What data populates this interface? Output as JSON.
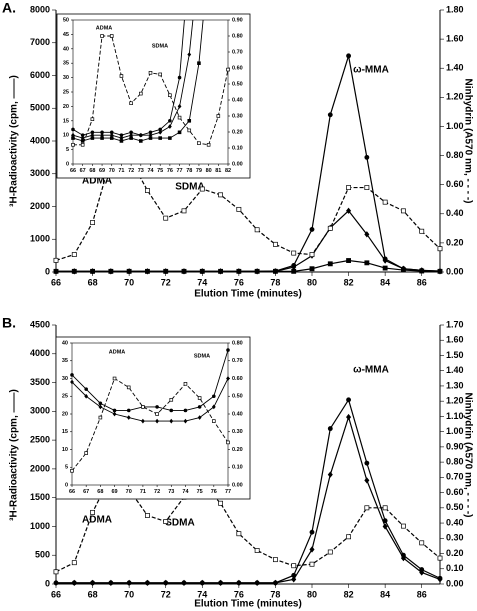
{
  "chart_data": [
    {
      "type": "line",
      "panel_label": "A.",
      "xlabel": "Elution Time (minutes)",
      "ylabel": "³H-Radioactivity (cpm, ——)",
      "y2label": "Ninhydrin (A570 nm, - - - -)",
      "annotations": [
        "ADMA",
        "SDMA",
        "ω-MMA"
      ],
      "x": [
        66,
        67,
        68,
        69,
        70,
        71,
        72,
        73,
        74,
        75,
        76,
        77,
        78,
        79,
        80,
        81,
        82,
        83,
        84,
        85,
        86,
        87
      ],
      "xlim": [
        66,
        87
      ],
      "xticks": [
        66,
        68,
        70,
        72,
        74,
        76,
        78,
        80,
        82,
        84,
        86
      ],
      "ylim": [
        0,
        8000
      ],
      "yticks": [
        0,
        1000,
        2000,
        3000,
        4000,
        5000,
        6000,
        7000,
        8000
      ],
      "y2lim": [
        0,
        1.8
      ],
      "y2ticks": [
        {
          "value": 0,
          "label": "0.00"
        },
        {
          "value": 0.2,
          "label": "0.20"
        },
        {
          "value": 0.4,
          "label": "0.40"
        },
        {
          "value": 0.6,
          "label": "0.60"
        },
        {
          "value": 0.8,
          "label": "0.80"
        },
        {
          "value": 1.0,
          "label": "1.00"
        },
        {
          "value": 1.2,
          "label": "1.20"
        },
        {
          "value": 1.4,
          "label": "1.40"
        },
        {
          "value": 1.6,
          "label": "1.60"
        },
        {
          "value": 1.8,
          "label": "1.80"
        }
      ],
      "series": [
        {
          "marker": "circle",
          "color": "#000000",
          "fill": "#000000",
          "dashed": false,
          "values": [
            20,
            20,
            20,
            20,
            20,
            20,
            20,
            20,
            20,
            20,
            20,
            20,
            30,
            200,
            1300,
            4800,
            6600,
            3500,
            400,
            100,
            50,
            30
          ]
        },
        {
          "marker": "diamond",
          "color": "#000000",
          "fill": "#000000",
          "dashed": false,
          "values": [
            20,
            20,
            20,
            20,
            20,
            20,
            20,
            20,
            20,
            20,
            20,
            20,
            20,
            150,
            500,
            1350,
            1870,
            1150,
            350,
            100,
            50,
            20
          ]
        },
        {
          "marker": "square",
          "color": "#000000",
          "fill": "#000000",
          "dashed": false,
          "values": [
            20,
            20,
            20,
            20,
            20,
            20,
            20,
            20,
            20,
            20,
            20,
            20,
            20,
            20,
            100,
            250,
            350,
            280,
            120,
            60,
            30,
            20
          ]
        },
        {
          "marker": "square",
          "color": "#000000",
          "fill": "#ffffff",
          "dashed": true,
          "axis": "y2",
          "values": [
            0.08,
            0.12,
            0.34,
            0.78,
            0.79,
            0.56,
            0.37,
            0.42,
            0.57,
            0.53,
            0.43,
            0.29,
            0.19,
            0.13,
            0.12,
            0.3,
            0.58,
            0.58,
            0.48,
            0.42,
            0.28,
            0.16
          ]
        }
      ]
    },
    {
      "type": "line",
      "annotations": [
        "ADMA",
        "SDMA"
      ],
      "x": [
        66,
        67,
        68,
        69,
        70,
        71,
        72,
        73,
        74,
        75,
        76,
        77,
        78,
        79,
        80,
        81,
        82
      ],
      "xlim": [
        66,
        82
      ],
      "xticks": [
        66,
        67,
        68,
        69,
        70,
        71,
        72,
        73,
        74,
        75,
        76,
        77,
        78,
        79,
        80,
        81,
        82
      ],
      "ylim": [
        0,
        50
      ],
      "yticks": [
        0,
        5,
        10,
        15,
        20,
        25,
        30,
        35,
        40,
        45,
        50
      ],
      "y2lim": [
        0,
        0.9
      ],
      "y2ticks": [
        {
          "value": 0,
          "label": "0.00"
        },
        {
          "value": 0.1,
          "label": "0.10"
        },
        {
          "value": 0.2,
          "label": "0.20"
        },
        {
          "value": 0.3,
          "label": "0.30"
        },
        {
          "value": 0.4,
          "label": "0.40"
        },
        {
          "value": 0.5,
          "label": "0.50"
        },
        {
          "value": 0.6,
          "label": "0.60"
        },
        {
          "value": 0.7,
          "label": "0.70"
        },
        {
          "value": 0.8,
          "label": "0.80"
        },
        {
          "value": 0.9,
          "label": "0.90"
        }
      ],
      "series": [
        {
          "marker": "circle",
          "color": "#000000",
          "fill": "#000000",
          "dashed": false,
          "values": [
            12,
            10,
            11,
            11,
            11,
            10,
            11,
            10,
            11,
            12,
            15,
            30,
            70,
            null,
            null,
            null,
            null
          ]
        },
        {
          "marker": "diamond",
          "color": "#000000",
          "fill": "#000000",
          "dashed": false,
          "values": [
            10,
            9,
            10,
            10,
            10,
            9,
            10,
            10,
            10,
            11,
            13,
            20,
            38,
            70,
            null,
            null,
            null
          ]
        },
        {
          "marker": "square",
          "color": "#000000",
          "fill": "#000000",
          "dashed": false,
          "values": [
            9,
            8,
            9,
            9,
            9,
            8,
            9,
            8,
            9,
            9,
            9,
            11,
            15,
            35,
            70,
            null,
            null
          ]
        },
        {
          "marker": "square",
          "color": "#000000",
          "fill": "#ffffff",
          "dashed": true,
          "axis": "y2",
          "values": [
            0.12,
            0.12,
            0.28,
            0.8,
            0.8,
            0.55,
            0.38,
            0.44,
            0.57,
            0.56,
            0.43,
            0.29,
            0.21,
            0.13,
            0.12,
            0.3,
            0.59
          ]
        }
      ]
    },
    {
      "type": "line",
      "panel_label": "B.",
      "xlabel": "Elution Time (minutes)",
      "ylabel": "³H-Radioactivity (cpm, ——)",
      "y2label": "Ninhydrin (A570 nm, - - - -)",
      "annotations": [
        "ADMA",
        "SDMA",
        "ω-MMA"
      ],
      "x": [
        66,
        67,
        68,
        69,
        70,
        71,
        72,
        73,
        74,
        75,
        76,
        77,
        78,
        79,
        80,
        81,
        82,
        83,
        84,
        85,
        86,
        87
      ],
      "xlim": [
        66,
        87
      ],
      "xticks": [
        66,
        68,
        70,
        72,
        74,
        76,
        78,
        80,
        82,
        84,
        86
      ],
      "ylim": [
        0,
        4500
      ],
      "yticks": [
        0,
        500,
        1000,
        1500,
        2000,
        2500,
        3000,
        3500,
        4000,
        4500
      ],
      "y2lim": [
        0,
        1.7
      ],
      "y2ticks": [
        {
          "value": 0,
          "label": "0.00"
        },
        {
          "value": 0.1,
          "label": "0.10"
        },
        {
          "value": 0.2,
          "label": "0.20"
        },
        {
          "value": 0.3,
          "label": "0.30"
        },
        {
          "value": 0.4,
          "label": "0.40"
        },
        {
          "value": 0.5,
          "label": "0.50"
        },
        {
          "value": 0.6,
          "label": "0.60"
        },
        {
          "value": 0.7,
          "label": "0.70"
        },
        {
          "value": 0.8,
          "label": "0.80"
        },
        {
          "value": 0.9,
          "label": "0.90"
        },
        {
          "value": 1.0,
          "label": "1.00"
        },
        {
          "value": 1.1,
          "label": "1.10"
        },
        {
          "value": 1.2,
          "label": "1.20"
        },
        {
          "value": 1.3,
          "label": "1.30"
        },
        {
          "value": 1.4,
          "label": "1.40"
        },
        {
          "value": 1.5,
          "label": "1.50"
        },
        {
          "value": 1.6,
          "label": "1.60"
        },
        {
          "value": 1.7,
          "label": "1.70"
        }
      ],
      "series": [
        {
          "marker": "circle",
          "color": "#000000",
          "fill": "#000000",
          "dashed": false,
          "values": [
            20,
            20,
            20,
            20,
            20,
            20,
            20,
            20,
            20,
            20,
            20,
            20,
            20,
            150,
            900,
            2700,
            3200,
            2100,
            1100,
            500,
            250,
            100
          ]
        },
        {
          "marker": "diamond",
          "color": "#000000",
          "fill": "#000000",
          "dashed": false,
          "values": [
            20,
            20,
            20,
            20,
            20,
            20,
            20,
            20,
            20,
            20,
            20,
            20,
            20,
            80,
            600,
            1900,
            2900,
            1800,
            1000,
            450,
            200,
            80
          ]
        },
        {
          "marker": "square",
          "color": "#000000",
          "fill": "#ffffff",
          "dashed": true,
          "axis": "y2",
          "values": [
            0.08,
            0.14,
            0.47,
            0.71,
            0.62,
            0.45,
            0.41,
            0.57,
            0.66,
            0.53,
            0.33,
            0.22,
            0.16,
            0.12,
            0.13,
            0.21,
            0.31,
            0.5,
            0.5,
            0.38,
            0.27,
            0.17
          ]
        }
      ]
    },
    {
      "type": "line",
      "annotations": [
        "ADMA",
        "SDMA"
      ],
      "x": [
        66,
        67,
        68,
        69,
        70,
        71,
        72,
        73,
        74,
        75,
        76,
        77
      ],
      "xlim": [
        66,
        77
      ],
      "xticks": [
        66,
        67,
        68,
        69,
        70,
        71,
        72,
        73,
        74,
        75,
        76,
        77
      ],
      "ylim": [
        0,
        40
      ],
      "yticks": [
        0,
        5,
        10,
        15,
        20,
        25,
        30,
        35,
        40
      ],
      "y2lim": [
        0,
        0.8
      ],
      "y2ticks": [
        {
          "value": 0,
          "label": "0.00"
        },
        {
          "value": 0.1,
          "label": "0.10"
        },
        {
          "value": 0.2,
          "label": "0.20"
        },
        {
          "value": 0.3,
          "label": "0.30"
        },
        {
          "value": 0.4,
          "label": "0.40"
        },
        {
          "value": 0.5,
          "label": "0.50"
        },
        {
          "value": 0.6,
          "label": "0.60"
        },
        {
          "value": 0.7,
          "label": "0.70"
        },
        {
          "value": 0.8,
          "label": "0.80"
        }
      ],
      "series": [
        {
          "marker": "circle",
          "color": "#000000",
          "fill": "#000000",
          "dashed": false,
          "values": [
            31,
            27,
            23,
            21,
            21,
            22,
            22,
            21,
            21,
            22,
            25,
            38
          ]
        },
        {
          "marker": "diamond",
          "color": "#000000",
          "fill": "#000000",
          "dashed": false,
          "values": [
            29,
            25,
            22,
            20,
            19,
            18,
            18,
            18,
            18,
            19,
            22,
            30
          ]
        },
        {
          "marker": "square",
          "color": "#000000",
          "fill": "#ffffff",
          "dashed": true,
          "axis": "y2",
          "values": [
            0.08,
            0.18,
            0.38,
            0.6,
            0.55,
            0.44,
            0.4,
            0.48,
            0.57,
            0.49,
            0.36,
            0.24
          ]
        }
      ]
    }
  ]
}
